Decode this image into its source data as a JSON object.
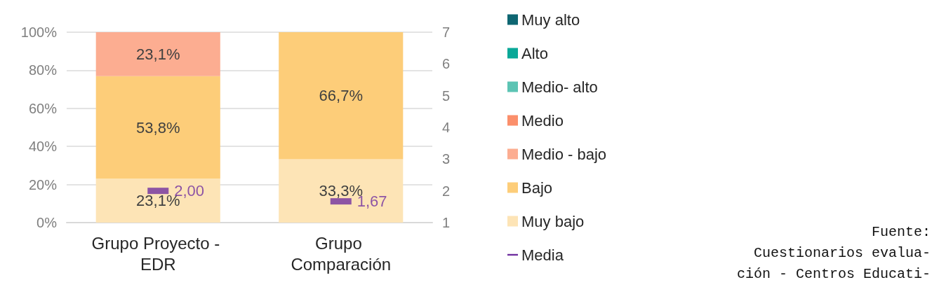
{
  "chart_data": {
    "type": "bar",
    "stacked": true,
    "categories": [
      "Grupo Proyecto - EDR",
      "Grupo Comparación"
    ],
    "series": [
      {
        "name": "Muy bajo",
        "color": "#fde4b6",
        "values": [
          23.1,
          33.3
        ],
        "value_labels": [
          "23,1%",
          "33,3%"
        ]
      },
      {
        "name": "Bajo",
        "color": "#fdcd79",
        "values": [
          53.8,
          66.7
        ],
        "value_labels": [
          "53,8%",
          "66,7%"
        ]
      },
      {
        "name": "Medio - bajo",
        "color": "#fcad91",
        "values": [
          23.1,
          0
        ],
        "value_labels": [
          "23,1%",
          null
        ]
      },
      {
        "name": "Medio",
        "color": "#fb8f6b",
        "values": [
          0,
          0
        ],
        "value_labels": [
          null,
          null
        ]
      },
      {
        "name": "Medio- alto",
        "color": "#5cc4b4",
        "values": [
          0,
          0
        ],
        "value_labels": [
          null,
          null
        ]
      },
      {
        "name": "Alto",
        "color": "#0aa898",
        "values": [
          0,
          0
        ],
        "value_labels": [
          null,
          null
        ]
      },
      {
        "name": "Muy alto",
        "color": "#0e6672",
        "values": [
          0,
          0
        ],
        "value_labels": [
          null,
          null
        ]
      },
      {
        "name": "Media",
        "type": "scatter",
        "axis": "y2",
        "color": "#7030a0",
        "values": [
          2.0,
          1.67
        ],
        "value_labels": [
          "2,00",
          "1,67"
        ]
      }
    ],
    "ylim": [
      0,
      100
    ],
    "yticks": [
      {
        "value": 0,
        "label": "0%"
      },
      {
        "value": 20,
        "label": "20%"
      },
      {
        "value": 40,
        "label": "40%"
      },
      {
        "value": 60,
        "label": "60%"
      },
      {
        "value": 80,
        "label": "80%"
      },
      {
        "value": 100,
        "label": "100%"
      }
    ],
    "y2lim": [
      1,
      7
    ],
    "y2ticks": [
      1,
      2,
      3,
      4,
      5,
      6,
      7
    ],
    "grid": "y",
    "legend": "right",
    "annotations": [
      "Fuente:\nCuestionarios evalua-\nción - Centros Educati-"
    ]
  }
}
